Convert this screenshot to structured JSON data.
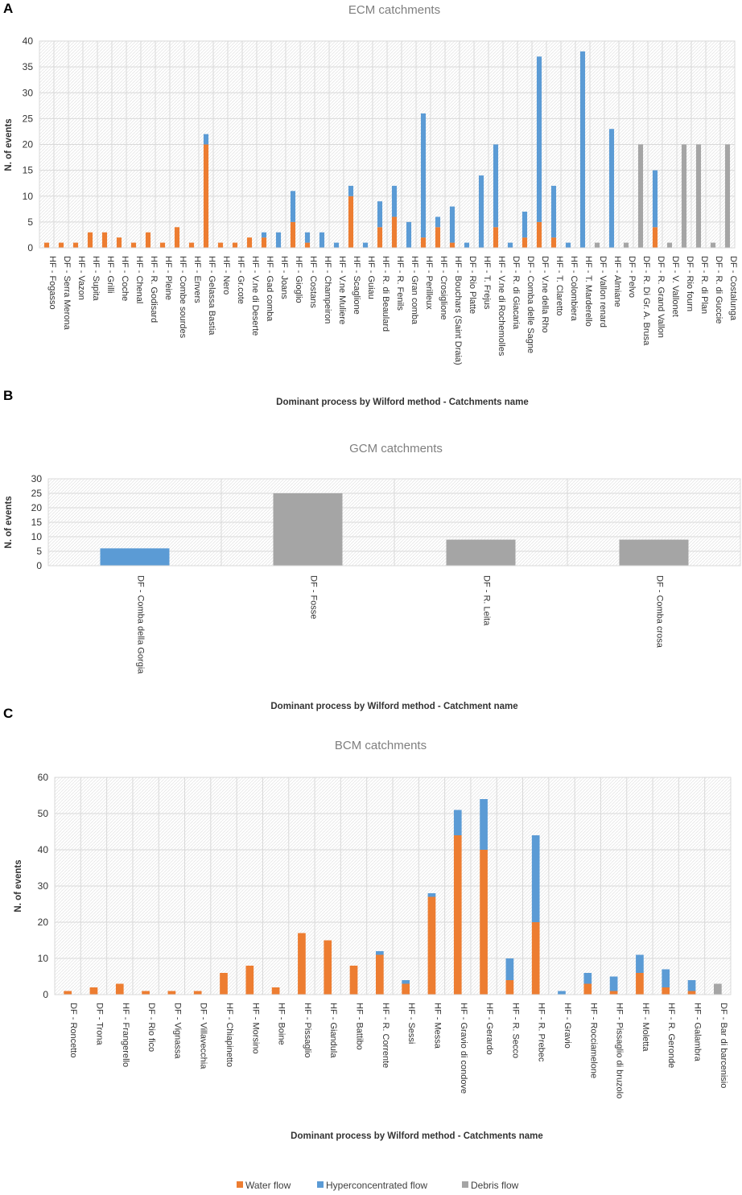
{
  "colors": {
    "water": "#ED7D31",
    "hyper": "#5B9BD5",
    "debris": "#A5A5A5",
    "grid": "#d9d9d9"
  },
  "legend": [
    {
      "key": "water",
      "label": "Water flow"
    },
    {
      "key": "hyper",
      "label": "Hyperconcentrated flow"
    },
    {
      "key": "debris",
      "label": "Debris flow"
    }
  ],
  "chart_data": [
    {
      "panel": "A",
      "type": "bar",
      "stacked": true,
      "title": "ECM catchments",
      "xlabel": "Dominant process by Wilford method - Catchments name",
      "ylabel": "N. of events",
      "ylim": [
        0,
        40
      ],
      "yticks": [
        0,
        5,
        10,
        15,
        20,
        25,
        30,
        35,
        40
      ],
      "categories": [
        "HF - Fogasso",
        "DF - Serra Merona",
        "HF - Vazon",
        "HF - Supita",
        "HF - Grilli",
        "HF - Coche",
        "HF - Chenal",
        "HF - R. Godisard",
        "HF - Pleine",
        "HF - Combe sourdes",
        "HF - Envers",
        "HF - Gelassa Bastia",
        "HF - Nero",
        "HF - Gr.cote",
        "HF - V.ne di Deserte",
        "HF - Gad comba",
        "HF - Joans",
        "HF - Gioglio",
        "HF - Costans",
        "HF - Champeiron",
        "HF - V.ne Muliere",
        "HF - Scaglione",
        "HF - Guiau",
        "HF - R. di Beaulard",
        "HF - R. Fenils",
        "HF - Gran comba",
        "HF - Perilleux",
        "HF - Crosiglione",
        "HF - Bouchars (Saint Draia)",
        "DF - Rio Platte",
        "HF - T. Frejus",
        "HF - V.ne di Rochemolles",
        "DF - R. di Giacaria",
        "DF - Comba delle Sagne",
        "DF - V.ne della Rho",
        "HF - T. Claretto",
        "HF - Colombiera",
        "HF - T. Marderello",
        "DF - Vallon renard",
        "HF - Almiane",
        "DF - Pelvo",
        "DF - R. Di Gr. A. Brusa",
        "DF - R. Grand Vallon",
        "DF - V. Vallonet",
        "DF - Rio fourn",
        "DF - R. di Plan",
        "DF - R. di Guccie",
        "DF - Costalunga"
      ],
      "series": [
        {
          "name": "Water flow",
          "key": "water",
          "values": [
            1,
            1,
            1,
            3,
            3,
            2,
            1,
            3,
            1,
            4,
            1,
            20,
            1,
            1,
            2,
            2,
            0,
            5,
            1,
            0,
            0,
            10,
            0,
            4,
            6,
            0,
            2,
            4,
            1,
            0,
            0,
            4,
            0,
            2,
            5,
            2,
            0,
            0,
            0,
            0,
            0,
            0,
            4,
            0,
            0,
            0,
            0,
            0
          ]
        },
        {
          "name": "Hyperconcentrated flow",
          "key": "hyper",
          "values": [
            0,
            0,
            0,
            0,
            0,
            0,
            0,
            0,
            0,
            0,
            0,
            2,
            0,
            0,
            0,
            1,
            3,
            6,
            2,
            3,
            1,
            2,
            1,
            5,
            6,
            5,
            24,
            2,
            7,
            1,
            14,
            16,
            1,
            5,
            32,
            10,
            1,
            38,
            0,
            23,
            0,
            0,
            11,
            0,
            0,
            0,
            0,
            0
          ]
        },
        {
          "name": "Debris flow",
          "key": "debris",
          "values": [
            0,
            0,
            0,
            0,
            0,
            0,
            0,
            0,
            0,
            0,
            0,
            0,
            0,
            0,
            0,
            0,
            0,
            0,
            0,
            0,
            0,
            0,
            0,
            0,
            0,
            0,
            0,
            0,
            0,
            0,
            0,
            0,
            0,
            0,
            0,
            0,
            0,
            0,
            1,
            0,
            1,
            20,
            0,
            1,
            20,
            20,
            1,
            20
          ]
        }
      ]
    },
    {
      "panel": "B",
      "type": "bar",
      "stacked": true,
      "title": "GCM catchments",
      "xlabel": "Dominant process by Wilford method - Catchment name",
      "ylabel": "N. of events",
      "ylim": [
        0,
        30
      ],
      "yticks": [
        0,
        5,
        10,
        15,
        20,
        25,
        30
      ],
      "categories": [
        "DF - Comba della Gorgia",
        "DF - Fosse",
        "DF - R. Leita",
        "DF - Comba crosa"
      ],
      "series": [
        {
          "name": "Water flow",
          "key": "water",
          "values": [
            0,
            0,
            0,
            0
          ]
        },
        {
          "name": "Hyperconcentrated flow",
          "key": "hyper",
          "values": [
            6,
            0,
            0,
            0
          ]
        },
        {
          "name": "Debris flow",
          "key": "debris",
          "values": [
            0,
            25,
            9,
            9
          ]
        }
      ]
    },
    {
      "panel": "C",
      "type": "bar",
      "stacked": true,
      "title": "BCM catchments",
      "xlabel": "Dominant process by Wilford method - Catchments name",
      "ylabel": "N. of events",
      "ylim": [
        0,
        60
      ],
      "yticks": [
        0,
        10,
        20,
        30,
        40,
        50,
        60
      ],
      "categories": [
        "DF - Roncetto",
        "DF - Trona",
        "HF - Frangerello",
        "DF - Rio fico",
        "DF - Vignassa",
        "DF - Villavecchia",
        "HF - Chiapinetto",
        "HF - Morsino",
        "HF - Boine",
        "HF - Pissaglio",
        "HF - Giandula",
        "HF - Battibo",
        "HF - R. Corrente",
        "HF - Sessi",
        "HF - Messa",
        "HF - Gravio di condove",
        "HF - Gerardo",
        "HF - R. Secco",
        "HF - R. Prebec",
        "HF - Gravio",
        "HF - Rocciamelone",
        "HF - Pissaglio di bruzolo",
        "HF - Moletta",
        "HF - R. Geronde",
        "HF - Galambra",
        "DF - Bar di barcenisio"
      ],
      "series": [
        {
          "name": "Water flow",
          "key": "water",
          "values": [
            1,
            2,
            3,
            1,
            1,
            1,
            6,
            8,
            2,
            17,
            15,
            8,
            11,
            3,
            27,
            44,
            40,
            4,
            20,
            0,
            3,
            1,
            6,
            2,
            1,
            0
          ]
        },
        {
          "name": "Hyperconcentrated flow",
          "key": "hyper",
          "values": [
            0,
            0,
            0,
            0,
            0,
            0,
            0,
            0,
            0,
            0,
            0,
            0,
            1,
            1,
            1,
            7,
            14,
            6,
            24,
            1,
            3,
            4,
            5,
            5,
            3,
            0
          ]
        },
        {
          "name": "Debris flow",
          "key": "debris",
          "values": [
            0,
            0,
            0,
            0,
            0,
            0,
            0,
            0,
            0,
            0,
            0,
            0,
            0,
            0,
            0,
            0,
            0,
            0,
            0,
            0,
            0,
            0,
            0,
            0,
            0,
            3
          ]
        }
      ]
    }
  ]
}
